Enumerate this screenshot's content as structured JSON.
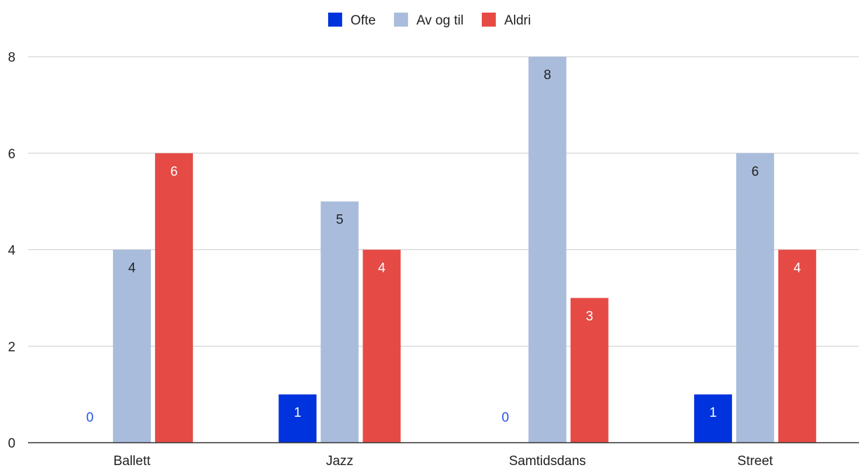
{
  "chart_data": {
    "type": "bar",
    "categories": [
      "Ballett",
      "Jazz",
      "Samtidsdans",
      "Street"
    ],
    "series": [
      {
        "name": "Ofte",
        "values": [
          0,
          1,
          0,
          1
        ],
        "color": "#0033dd",
        "label_color": "#ffffff",
        "zero_label_color": "#2255ee"
      },
      {
        "name": "Av og til",
        "values": [
          4,
          5,
          8,
          6
        ],
        "color": "#a9bcdc",
        "label_color": "#222222",
        "zero_label_color": "#222222"
      },
      {
        "name": "Aldri",
        "values": [
          6,
          4,
          3,
          4
        ],
        "color": "#e64a45",
        "label_color": "#ffffff",
        "zero_label_color": "#e64a45"
      }
    ],
    "yticks": [
      0,
      2,
      4,
      6,
      8
    ],
    "ylim": [
      0,
      8
    ],
    "grid": true,
    "legend_position": "top-center"
  }
}
